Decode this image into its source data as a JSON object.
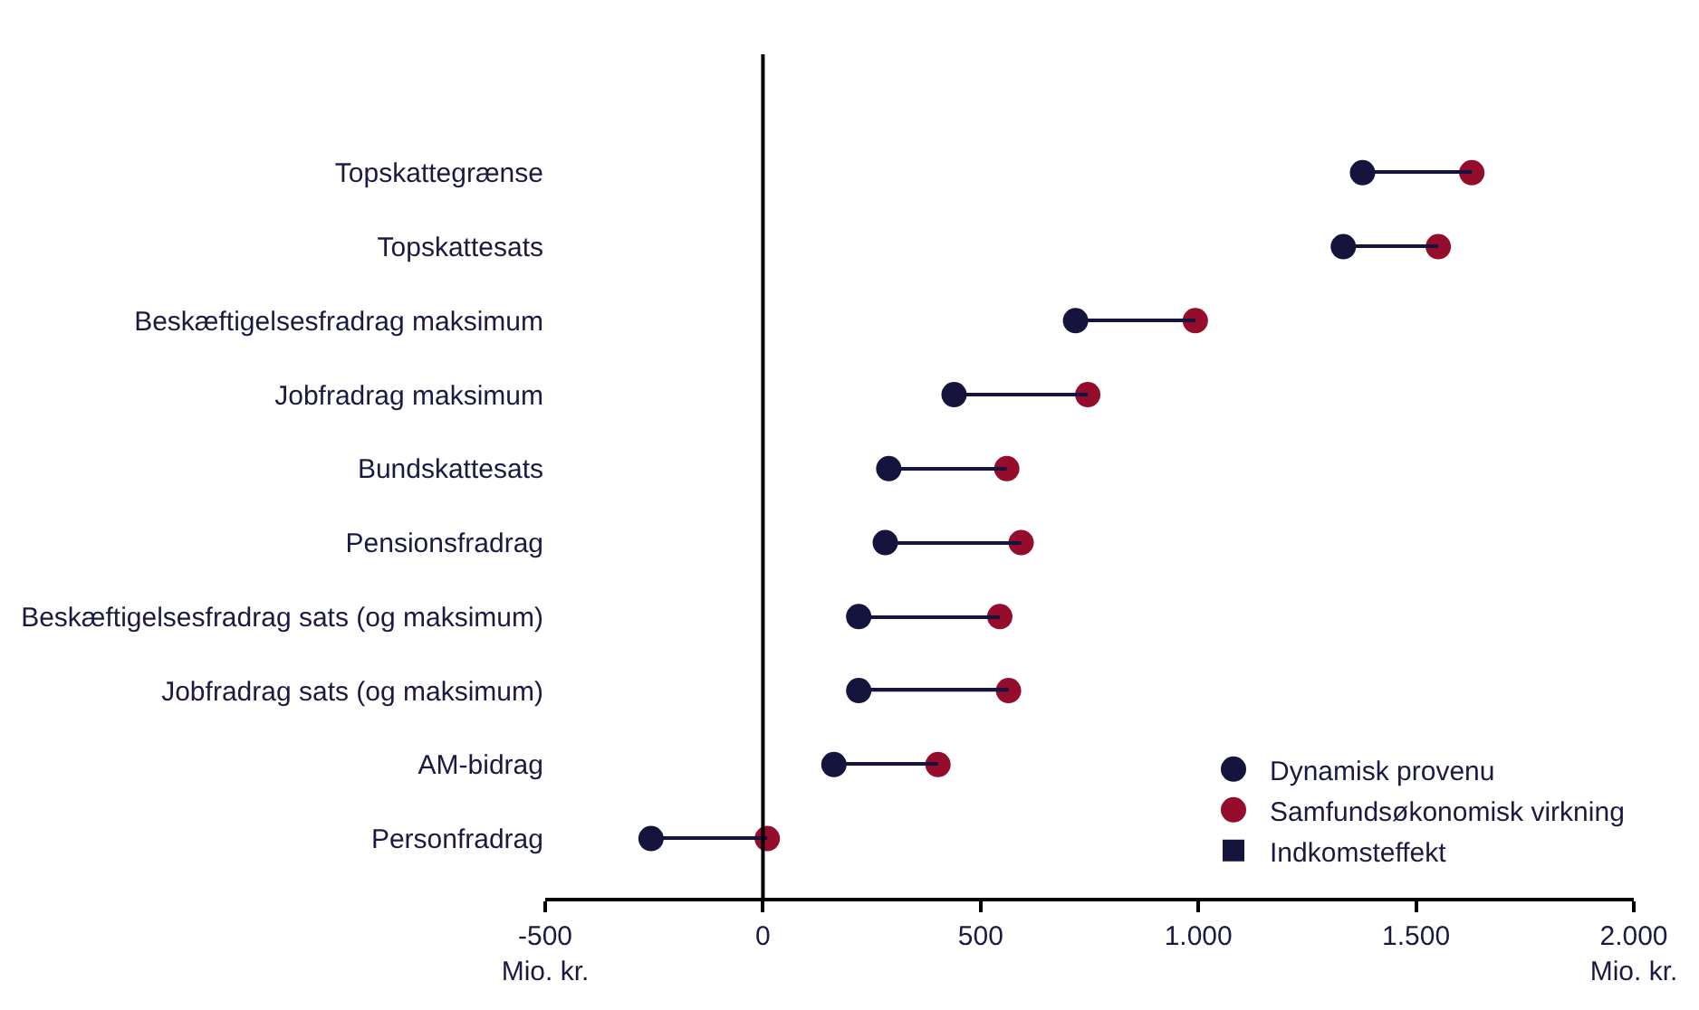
{
  "chart_data": {
    "type": "scatter",
    "orientation": "horizontal",
    "categories": [
      "Topskattegrænse",
      "Topskattesats",
      "Beskæftigelsesfradrag maksimum",
      "Jobfradrag maksimum",
      "Bundskattesats",
      "Pensionsfradrag",
      "Beskæftigelsesfradrag sats (og maksimum)",
      "Jobfradrag sats (og maksimum)",
      "AM-bidrag",
      "Personfradrag"
    ],
    "series": [
      {
        "name": "Dynamisk provenu",
        "color": "#14143c",
        "values": [
          1377,
          1333,
          718,
          439,
          289,
          281,
          220,
          220,
          163,
          -257
        ]
      },
      {
        "name": "Samfundsøkonomisk virkning",
        "color": "#960c2d",
        "values": [
          1628,
          1551,
          993,
          746,
          560,
          593,
          544,
          564,
          402,
          10
        ]
      },
      {
        "name": "Indkomsteffekt",
        "type": "bar",
        "color": "#14143c",
        "base": [
          1377,
          1333,
          718,
          439,
          289,
          281,
          220,
          220,
          163,
          -257
        ],
        "values": [
          251,
          218,
          275,
          307,
          271,
          312,
          324,
          344,
          239,
          267
        ]
      }
    ],
    "xlim": [
      -500,
      2000
    ],
    "xticks": [
      {
        "value": -500,
        "label": "-500\nMio. kr."
      },
      0,
      500,
      {
        "value": 1000,
        "label": "1.000"
      },
      {
        "value": 1500,
        "label": "1.500"
      },
      {
        "value": 2000,
        "label": "2.000\nMio. kr."
      }
    ],
    "ref_lines": [
      {
        "axis": "x",
        "value": 0,
        "color": "#000000"
      }
    ],
    "legend": "bottom right",
    "marker": "circle"
  }
}
